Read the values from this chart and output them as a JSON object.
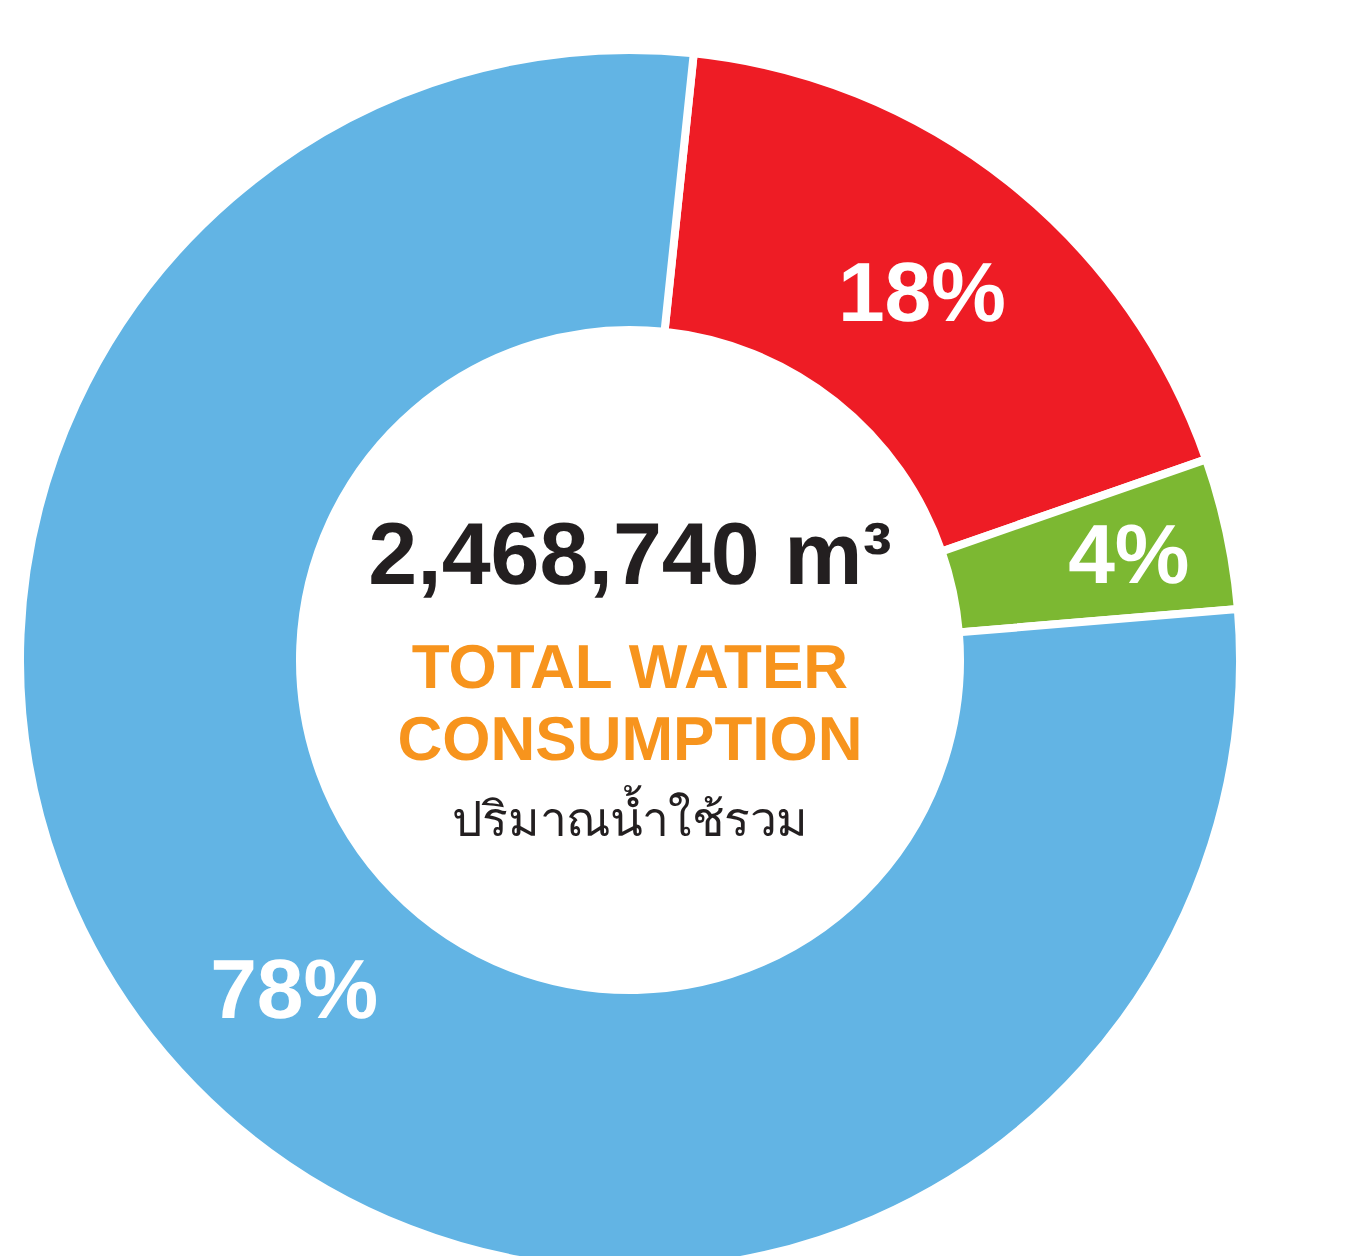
{
  "chart_data": {
    "type": "donut",
    "title": "2,468,740 m³",
    "subtitle": "TOTAL WATER CONSUMPTION",
    "annotations": [
      "ปริมาณน้ำใช้รวม"
    ],
    "categories": [
      null,
      null,
      null
    ],
    "values": [
      18,
      4,
      78
    ],
    "colors": [
      "#ee1c25",
      "#7cb832",
      "#62b4e4"
    ],
    "value_labels": [
      "18%",
      "4%",
      "78%"
    ]
  }
}
